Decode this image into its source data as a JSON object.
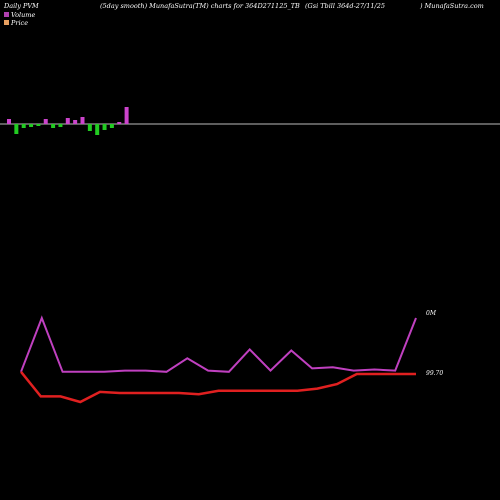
{
  "header": {
    "left": "Daily PVM",
    "center": "(5day smooth) MunafaSutra(TM) charts for 364D271125_TB",
    "right1": "(Gsi  Tbill 364d-27/11/25",
    "right2": ") MunafaSutra.com"
  },
  "legend": [
    {
      "label": "Volume",
      "color": "#b040b0"
    },
    {
      "label": "Price",
      "color": "#e8a060"
    }
  ],
  "chart_data": {
    "type": "line",
    "y_tick_labels": {
      "volume": "0M",
      "price": "99.70"
    },
    "volume_bars": {
      "colors": {
        "up": "#cc44cc",
        "down": "#22cc22"
      },
      "values": [
        {
          "v": 5,
          "dir": "up"
        },
        {
          "v": -10,
          "dir": "down"
        },
        {
          "v": -4,
          "dir": "down"
        },
        {
          "v": -3,
          "dir": "down"
        },
        {
          "v": -2,
          "dir": "down"
        },
        {
          "v": 5,
          "dir": "up"
        },
        {
          "v": -4,
          "dir": "down"
        },
        {
          "v": -3,
          "dir": "down"
        },
        {
          "v": 6,
          "dir": "up"
        },
        {
          "v": 4,
          "dir": "up"
        },
        {
          "v": 7,
          "dir": "up"
        },
        {
          "v": -7,
          "dir": "down"
        },
        {
          "v": -11,
          "dir": "down"
        },
        {
          "v": -6,
          "dir": "down"
        },
        {
          "v": -4,
          "dir": "down"
        },
        {
          "v": 2,
          "dir": "up"
        },
        {
          "v": 17,
          "dir": "up"
        }
      ]
    },
    "series": [
      {
        "color": "#c040c0",
        "values": [
          52,
          100,
          52,
          52,
          52,
          53,
          53,
          52,
          64,
          53,
          52,
          72,
          53,
          71,
          55,
          56,
          53,
          54,
          53,
          100
        ]
      },
      {
        "color": "#e02020",
        "values": [
          52,
          30,
          30,
          25,
          34,
          33,
          33,
          33,
          33,
          32,
          35,
          35,
          35,
          35,
          35,
          37,
          41,
          50,
          50,
          50,
          50
        ]
      }
    ]
  }
}
